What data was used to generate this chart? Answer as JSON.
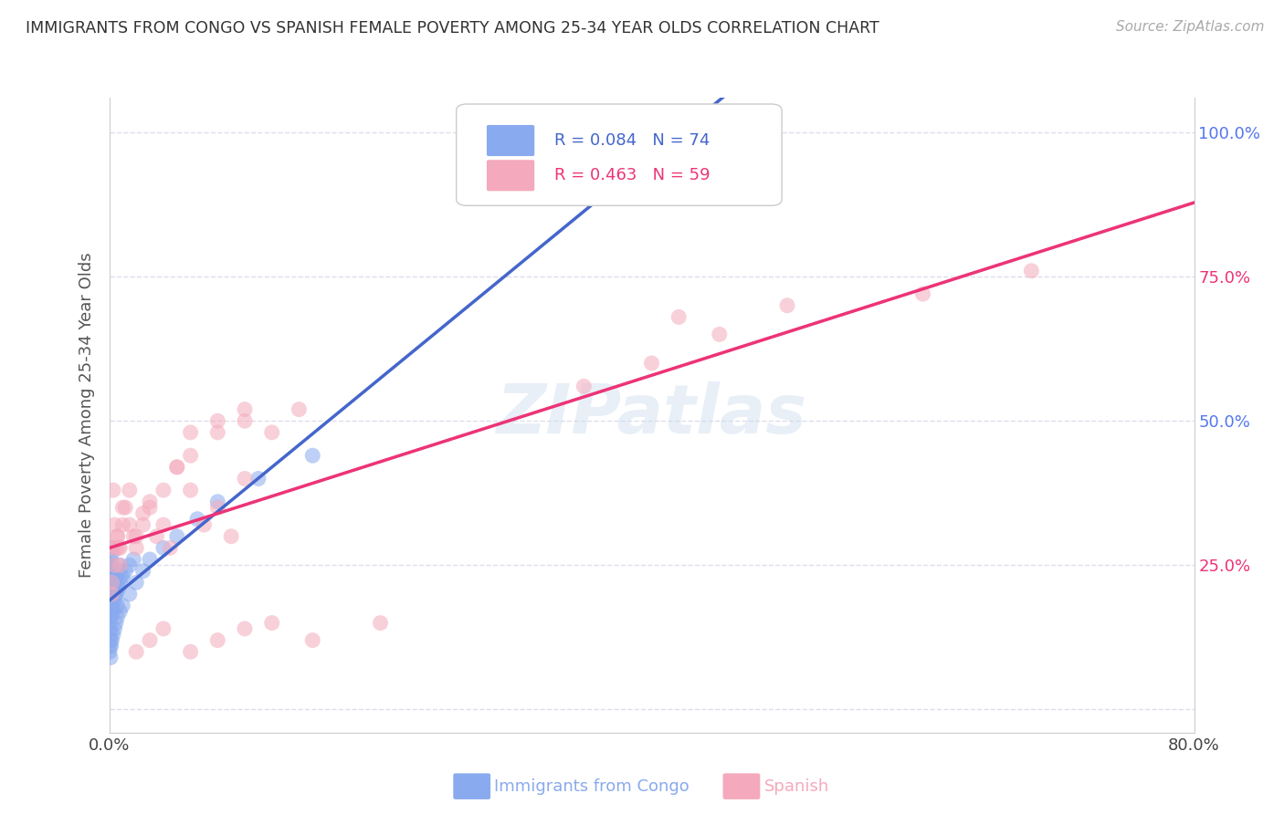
{
  "title": "IMMIGRANTS FROM CONGO VS SPANISH FEMALE POVERTY AMONG 25-34 YEAR OLDS CORRELATION CHART",
  "source": "Source: ZipAtlas.com",
  "ylabel": "Female Poverty Among 25-34 Year Olds",
  "xlim": [
    0.0,
    0.8
  ],
  "ylim": [
    -0.04,
    1.06
  ],
  "ytick_positions": [
    0.0,
    0.25,
    0.5,
    0.75,
    1.0
  ],
  "yticklabels_right": [
    "",
    "25.0%",
    "50.0%",
    "75.0%",
    "100.0%"
  ],
  "legend_r1": "R = 0.084",
  "legend_n1": "N = 74",
  "legend_r2": "R = 0.463",
  "legend_n2": "N = 59",
  "blue_color": "#89AAEE",
  "pink_color": "#F4AABC",
  "blue_line_color": "#4466CC",
  "pink_line_color": "#EE3377",
  "dashed_color": "#BBBBCC",
  "watermark": "ZIPatlas",
  "background_color": "#FFFFFF",
  "grid_color": "#DDDDEE",
  "title_color": "#333333",
  "axis_label_color": "#555555",
  "right_tick_colors": [
    "#5577EE",
    "#EE3377",
    "#5577EE",
    "#EE3377",
    "#5577EE"
  ],
  "bottom_label_blue": "Immigrants from Congo",
  "bottom_label_pink": "Spanish",
  "blue_x": [
    0.0003,
    0.0004,
    0.0005,
    0.0006,
    0.0007,
    0.0008,
    0.0009,
    0.001,
    0.001,
    0.001,
    0.001,
    0.001,
    0.001,
    0.0015,
    0.0015,
    0.002,
    0.002,
    0.002,
    0.002,
    0.003,
    0.003,
    0.003,
    0.004,
    0.004,
    0.005,
    0.005,
    0.006,
    0.007,
    0.008,
    0.009,
    0.0003,
    0.0005,
    0.0007,
    0.001,
    0.001,
    0.0012,
    0.0015,
    0.002,
    0.002,
    0.003,
    0.003,
    0.004,
    0.005,
    0.006,
    0.007,
    0.008,
    0.01,
    0.012,
    0.015,
    0.018,
    0.0003,
    0.0005,
    0.0008,
    0.001,
    0.001,
    0.001,
    0.0015,
    0.002,
    0.003,
    0.004,
    0.005,
    0.006,
    0.008,
    0.01,
    0.015,
    0.02,
    0.025,
    0.03,
    0.04,
    0.05,
    0.065,
    0.08,
    0.11,
    0.15
  ],
  "blue_y": [
    0.2,
    0.22,
    0.18,
    0.24,
    0.21,
    0.19,
    0.23,
    0.25,
    0.17,
    0.26,
    0.22,
    0.2,
    0.23,
    0.24,
    0.21,
    0.27,
    0.28,
    0.22,
    0.25,
    0.23,
    0.2,
    0.24,
    0.22,
    0.21,
    0.23,
    0.2,
    0.22,
    0.24,
    0.25,
    0.23,
    0.15,
    0.16,
    0.17,
    0.18,
    0.19,
    0.16,
    0.17,
    0.19,
    0.18,
    0.2,
    0.17,
    0.19,
    0.2,
    0.18,
    0.21,
    0.22,
    0.23,
    0.24,
    0.25,
    0.26,
    0.1,
    0.11,
    0.12,
    0.13,
    0.14,
    0.09,
    0.11,
    0.12,
    0.13,
    0.14,
    0.15,
    0.16,
    0.17,
    0.18,
    0.2,
    0.22,
    0.24,
    0.26,
    0.28,
    0.3,
    0.33,
    0.36,
    0.4,
    0.44
  ],
  "pink_x": [
    0.001,
    0.002,
    0.003,
    0.004,
    0.005,
    0.006,
    0.007,
    0.008,
    0.01,
    0.012,
    0.015,
    0.018,
    0.02,
    0.025,
    0.03,
    0.035,
    0.04,
    0.045,
    0.05,
    0.06,
    0.07,
    0.08,
    0.09,
    0.1,
    0.06,
    0.08,
    0.1,
    0.12,
    0.14,
    0.002,
    0.004,
    0.006,
    0.008,
    0.01,
    0.015,
    0.02,
    0.025,
    0.03,
    0.04,
    0.05,
    0.06,
    0.08,
    0.1,
    0.35,
    0.4,
    0.45,
    0.5,
    0.42,
    0.6,
    0.68,
    0.02,
    0.03,
    0.04,
    0.06,
    0.08,
    0.1,
    0.12,
    0.15,
    0.2
  ],
  "pink_y": [
    0.28,
    0.2,
    0.38,
    0.32,
    0.28,
    0.3,
    0.28,
    0.25,
    0.32,
    0.35,
    0.38,
    0.3,
    0.28,
    0.32,
    0.35,
    0.3,
    0.32,
    0.28,
    0.42,
    0.38,
    0.32,
    0.35,
    0.3,
    0.4,
    0.48,
    0.5,
    0.52,
    0.48,
    0.52,
    0.22,
    0.25,
    0.3,
    0.28,
    0.35,
    0.32,
    0.3,
    0.34,
    0.36,
    0.38,
    0.42,
    0.44,
    0.48,
    0.5,
    0.56,
    0.6,
    0.65,
    0.7,
    0.68,
    0.72,
    0.76,
    0.1,
    0.12,
    0.14,
    0.1,
    0.12,
    0.14,
    0.15,
    0.12,
    0.15
  ]
}
